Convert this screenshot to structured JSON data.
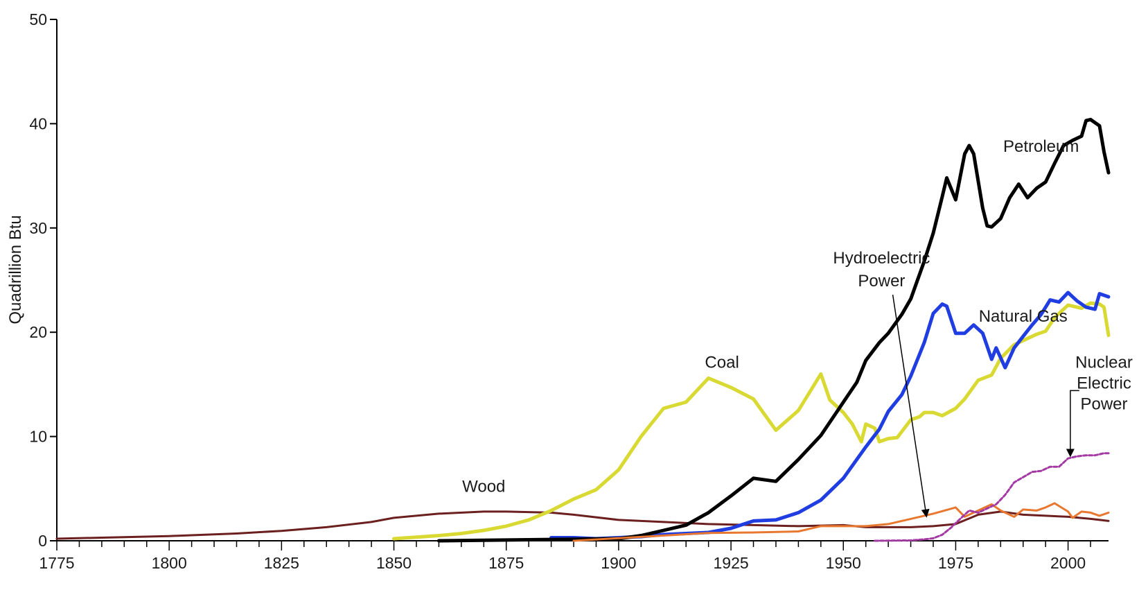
{
  "chart_data": {
    "type": "line",
    "title": "",
    "xlabel": "",
    "ylabel": "Quadrillion Btu",
    "xlim": [
      1775,
      2009
    ],
    "ylim": [
      0,
      50
    ],
    "x_ticks": [
      1775,
      1800,
      1825,
      1850,
      1875,
      1900,
      1925,
      1950,
      1975,
      2000
    ],
    "y_ticks": [
      0,
      10,
      20,
      30,
      40,
      50
    ],
    "grid": false,
    "legend": "none",
    "series": [
      {
        "name": "Wood",
        "color": "#6b1f1f",
        "width": 3,
        "dash": "",
        "points": [
          [
            1775,
            0.2
          ],
          [
            1785,
            0.3
          ],
          [
            1800,
            0.45
          ],
          [
            1815,
            0.7
          ],
          [
            1825,
            0.95
          ],
          [
            1835,
            1.3
          ],
          [
            1845,
            1.8
          ],
          [
            1850,
            2.2
          ],
          [
            1860,
            2.6
          ],
          [
            1870,
            2.8
          ],
          [
            1875,
            2.8
          ],
          [
            1885,
            2.7
          ],
          [
            1890,
            2.5
          ],
          [
            1900,
            2.0
          ],
          [
            1910,
            1.8
          ],
          [
            1920,
            1.6
          ],
          [
            1930,
            1.5
          ],
          [
            1940,
            1.4
          ],
          [
            1950,
            1.5
          ],
          [
            1955,
            1.3
          ],
          [
            1960,
            1.3
          ],
          [
            1965,
            1.3
          ],
          [
            1970,
            1.4
          ],
          [
            1975,
            1.6
          ],
          [
            1980,
            2.5
          ],
          [
            1985,
            2.8
          ],
          [
            1990,
            2.5
          ],
          [
            1995,
            2.4
          ],
          [
            2000,
            2.3
          ],
          [
            2005,
            2.1
          ],
          [
            2009,
            1.9
          ]
        ]
      },
      {
        "name": "Coal",
        "color": "#d9d934",
        "width": 5,
        "dash": "",
        "points": [
          [
            1850,
            0.2
          ],
          [
            1855,
            0.35
          ],
          [
            1860,
            0.5
          ],
          [
            1865,
            0.7
          ],
          [
            1870,
            1.0
          ],
          [
            1875,
            1.4
          ],
          [
            1880,
            2.0
          ],
          [
            1885,
            2.9
          ],
          [
            1890,
            4.0
          ],
          [
            1895,
            4.9
          ],
          [
            1900,
            6.8
          ],
          [
            1905,
            10.0
          ],
          [
            1910,
            12.7
          ],
          [
            1915,
            13.3
          ],
          [
            1920,
            15.6
          ],
          [
            1925,
            14.7
          ],
          [
            1930,
            13.6
          ],
          [
            1935,
            10.6
          ],
          [
            1940,
            12.5
          ],
          [
            1945,
            16.0
          ],
          [
            1947,
            13.5
          ],
          [
            1950,
            12.3
          ],
          [
            1952,
            11.2
          ],
          [
            1954,
            9.5
          ],
          [
            1955,
            11.2
          ],
          [
            1957,
            10.8
          ],
          [
            1958,
            9.5
          ],
          [
            1960,
            9.8
          ],
          [
            1962,
            9.9
          ],
          [
            1965,
            11.6
          ],
          [
            1967,
            11.9
          ],
          [
            1968,
            12.3
          ],
          [
            1970,
            12.3
          ],
          [
            1972,
            12.0
          ],
          [
            1975,
            12.7
          ],
          [
            1977,
            13.6
          ],
          [
            1980,
            15.4
          ],
          [
            1983,
            15.9
          ],
          [
            1985,
            17.5
          ],
          [
            1988,
            18.8
          ],
          [
            1990,
            19.2
          ],
          [
            1993,
            19.8
          ],
          [
            1995,
            20.1
          ],
          [
            1997,
            21.4
          ],
          [
            2000,
            22.6
          ],
          [
            2003,
            22.3
          ],
          [
            2005,
            22.8
          ],
          [
            2007,
            22.7
          ],
          [
            2008,
            22.4
          ],
          [
            2009,
            19.7
          ]
        ]
      },
      {
        "name": "Natural Gas",
        "color": "#1f3de0",
        "width": 5,
        "dash": "",
        "points": [
          [
            1885,
            0.3
          ],
          [
            1890,
            0.3
          ],
          [
            1895,
            0.2
          ],
          [
            1900,
            0.3
          ],
          [
            1905,
            0.4
          ],
          [
            1910,
            0.6
          ],
          [
            1915,
            0.7
          ],
          [
            1920,
            0.8
          ],
          [
            1925,
            1.2
          ],
          [
            1930,
            1.9
          ],
          [
            1935,
            2.0
          ],
          [
            1940,
            2.7
          ],
          [
            1945,
            3.9
          ],
          [
            1950,
            6.0
          ],
          [
            1953,
            7.8
          ],
          [
            1955,
            9.0
          ],
          [
            1958,
            10.7
          ],
          [
            1960,
            12.4
          ],
          [
            1963,
            14.0
          ],
          [
            1965,
            15.8
          ],
          [
            1968,
            19.0
          ],
          [
            1970,
            21.8
          ],
          [
            1972,
            22.7
          ],
          [
            1973,
            22.5
          ],
          [
            1975,
            19.9
          ],
          [
            1977,
            19.9
          ],
          [
            1979,
            20.7
          ],
          [
            1981,
            19.9
          ],
          [
            1983,
            17.4
          ],
          [
            1984,
            18.5
          ],
          [
            1986,
            16.6
          ],
          [
            1988,
            18.5
          ],
          [
            1990,
            19.6
          ],
          [
            1992,
            20.7
          ],
          [
            1994,
            21.7
          ],
          [
            1996,
            23.1
          ],
          [
            1998,
            22.9
          ],
          [
            2000,
            23.8
          ],
          [
            2002,
            23.0
          ],
          [
            2004,
            22.4
          ],
          [
            2006,
            22.2
          ],
          [
            2007,
            23.7
          ],
          [
            2009,
            23.4
          ]
        ]
      },
      {
        "name": "Petroleum",
        "color": "#000000",
        "width": 5,
        "dash": "",
        "points": [
          [
            1860,
            0.0
          ],
          [
            1870,
            0.05
          ],
          [
            1880,
            0.1
          ],
          [
            1890,
            0.15
          ],
          [
            1900,
            0.2
          ],
          [
            1905,
            0.5
          ],
          [
            1910,
            1.0
          ],
          [
            1915,
            1.5
          ],
          [
            1920,
            2.7
          ],
          [
            1925,
            4.3
          ],
          [
            1930,
            6.0
          ],
          [
            1935,
            5.7
          ],
          [
            1940,
            7.8
          ],
          [
            1945,
            10.1
          ],
          [
            1950,
            13.3
          ],
          [
            1953,
            15.2
          ],
          [
            1955,
            17.3
          ],
          [
            1958,
            19.0
          ],
          [
            1960,
            19.9
          ],
          [
            1963,
            21.7
          ],
          [
            1965,
            23.2
          ],
          [
            1968,
            26.8
          ],
          [
            1970,
            29.5
          ],
          [
            1972,
            33.0
          ],
          [
            1973,
            34.8
          ],
          [
            1975,
            32.7
          ],
          [
            1977,
            37.1
          ],
          [
            1978,
            37.9
          ],
          [
            1979,
            37.1
          ],
          [
            1981,
            31.9
          ],
          [
            1982,
            30.2
          ],
          [
            1983,
            30.1
          ],
          [
            1985,
            30.9
          ],
          [
            1987,
            32.9
          ],
          [
            1989,
            34.2
          ],
          [
            1991,
            32.9
          ],
          [
            1993,
            33.8
          ],
          [
            1995,
            34.4
          ],
          [
            1997,
            36.2
          ],
          [
            1999,
            37.9
          ],
          [
            2001,
            38.4
          ],
          [
            2003,
            38.8
          ],
          [
            2004,
            40.3
          ],
          [
            2005,
            40.4
          ],
          [
            2007,
            39.8
          ],
          [
            2008,
            37.3
          ],
          [
            2009,
            35.3
          ]
        ]
      },
      {
        "name": "Hydroelectric Power",
        "color": "#e87830",
        "width": 3,
        "dash": "",
        "points": [
          [
            1890,
            0.0
          ],
          [
            1900,
            0.25
          ],
          [
            1910,
            0.5
          ],
          [
            1920,
            0.75
          ],
          [
            1930,
            0.8
          ],
          [
            1940,
            0.9
          ],
          [
            1945,
            1.4
          ],
          [
            1950,
            1.4
          ],
          [
            1955,
            1.4
          ],
          [
            1960,
            1.6
          ],
          [
            1965,
            2.1
          ],
          [
            1970,
            2.6
          ],
          [
            1975,
            3.2
          ],
          [
            1977,
            2.3
          ],
          [
            1980,
            2.9
          ],
          [
            1983,
            3.5
          ],
          [
            1985,
            2.9
          ],
          [
            1988,
            2.3
          ],
          [
            1990,
            3.0
          ],
          [
            1993,
            2.9
          ],
          [
            1995,
            3.2
          ],
          [
            1997,
            3.6
          ],
          [
            2000,
            2.8
          ],
          [
            2001,
            2.2
          ],
          [
            2003,
            2.8
          ],
          [
            2005,
            2.7
          ],
          [
            2007,
            2.4
          ],
          [
            2009,
            2.7
          ]
        ]
      },
      {
        "name": "Nuclear Electric Power",
        "color": "#a33aa3",
        "width": 3,
        "dash": "5 3",
        "points": [
          [
            1957,
            0.0
          ],
          [
            1965,
            0.04
          ],
          [
            1968,
            0.13
          ],
          [
            1970,
            0.24
          ],
          [
            1972,
            0.58
          ],
          [
            1974,
            1.27
          ],
          [
            1976,
            2.1
          ],
          [
            1978,
            2.9
          ],
          [
            1980,
            2.7
          ],
          [
            1982,
            3.1
          ],
          [
            1984,
            3.5
          ],
          [
            1986,
            4.4
          ],
          [
            1988,
            5.6
          ],
          [
            1990,
            6.1
          ],
          [
            1992,
            6.6
          ],
          [
            1994,
            6.7
          ],
          [
            1996,
            7.1
          ],
          [
            1998,
            7.1
          ],
          [
            2000,
            7.9
          ],
          [
            2002,
            8.1
          ],
          [
            2004,
            8.2
          ],
          [
            2006,
            8.2
          ],
          [
            2008,
            8.4
          ],
          [
            2009,
            8.4
          ]
        ]
      }
    ],
    "annotations": [
      {
        "lines": [
          "Wood"
        ],
        "series": "Wood"
      },
      {
        "lines": [
          "Coal"
        ],
        "series": "Coal"
      },
      {
        "lines": [
          "Petroleum"
        ],
        "series": "Petroleum"
      },
      {
        "lines": [
          "Natural Gas"
        ],
        "series": "Natural Gas"
      },
      {
        "lines": [
          "Hydroelectric",
          "Power"
        ],
        "series": "Hydroelectric Power",
        "arrow": true
      },
      {
        "lines": [
          "Nuclear",
          "Electric",
          "Power"
        ],
        "series": "Nuclear Electric Power",
        "arrow": true
      }
    ]
  }
}
